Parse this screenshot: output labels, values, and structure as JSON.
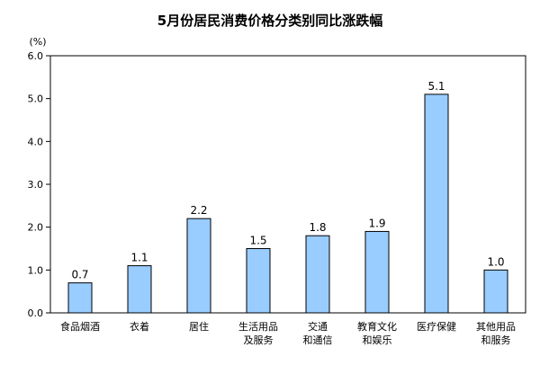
{
  "chart_data": {
    "type": "bar",
    "title": "5月份居民消费价格分类别同比涨跌幅",
    "unit_label": "(%)",
    "categories": [
      [
        "食品烟酒"
      ],
      [
        "衣着"
      ],
      [
        "居住"
      ],
      [
        "生活用品",
        "及服务"
      ],
      [
        "交通",
        "和通信"
      ],
      [
        "教育文化",
        "和娱乐"
      ],
      [
        "医疗保健"
      ],
      [
        "其他用品",
        "和服务"
      ]
    ],
    "values": [
      0.7,
      1.1,
      2.2,
      1.5,
      1.8,
      1.9,
      5.1,
      1.0
    ],
    "value_labels": [
      "0.7",
      "1.1",
      "2.2",
      "1.5",
      "1.8",
      "1.9",
      "5.1",
      "1.0"
    ],
    "yticks": [
      "0.0",
      "1.0",
      "2.0",
      "3.0",
      "4.0",
      "5.0",
      "6.0"
    ],
    "ylim": [
      0,
      6
    ],
    "grid": false,
    "bar_color": "#99CCFF",
    "bar_stroke": "#000000"
  }
}
